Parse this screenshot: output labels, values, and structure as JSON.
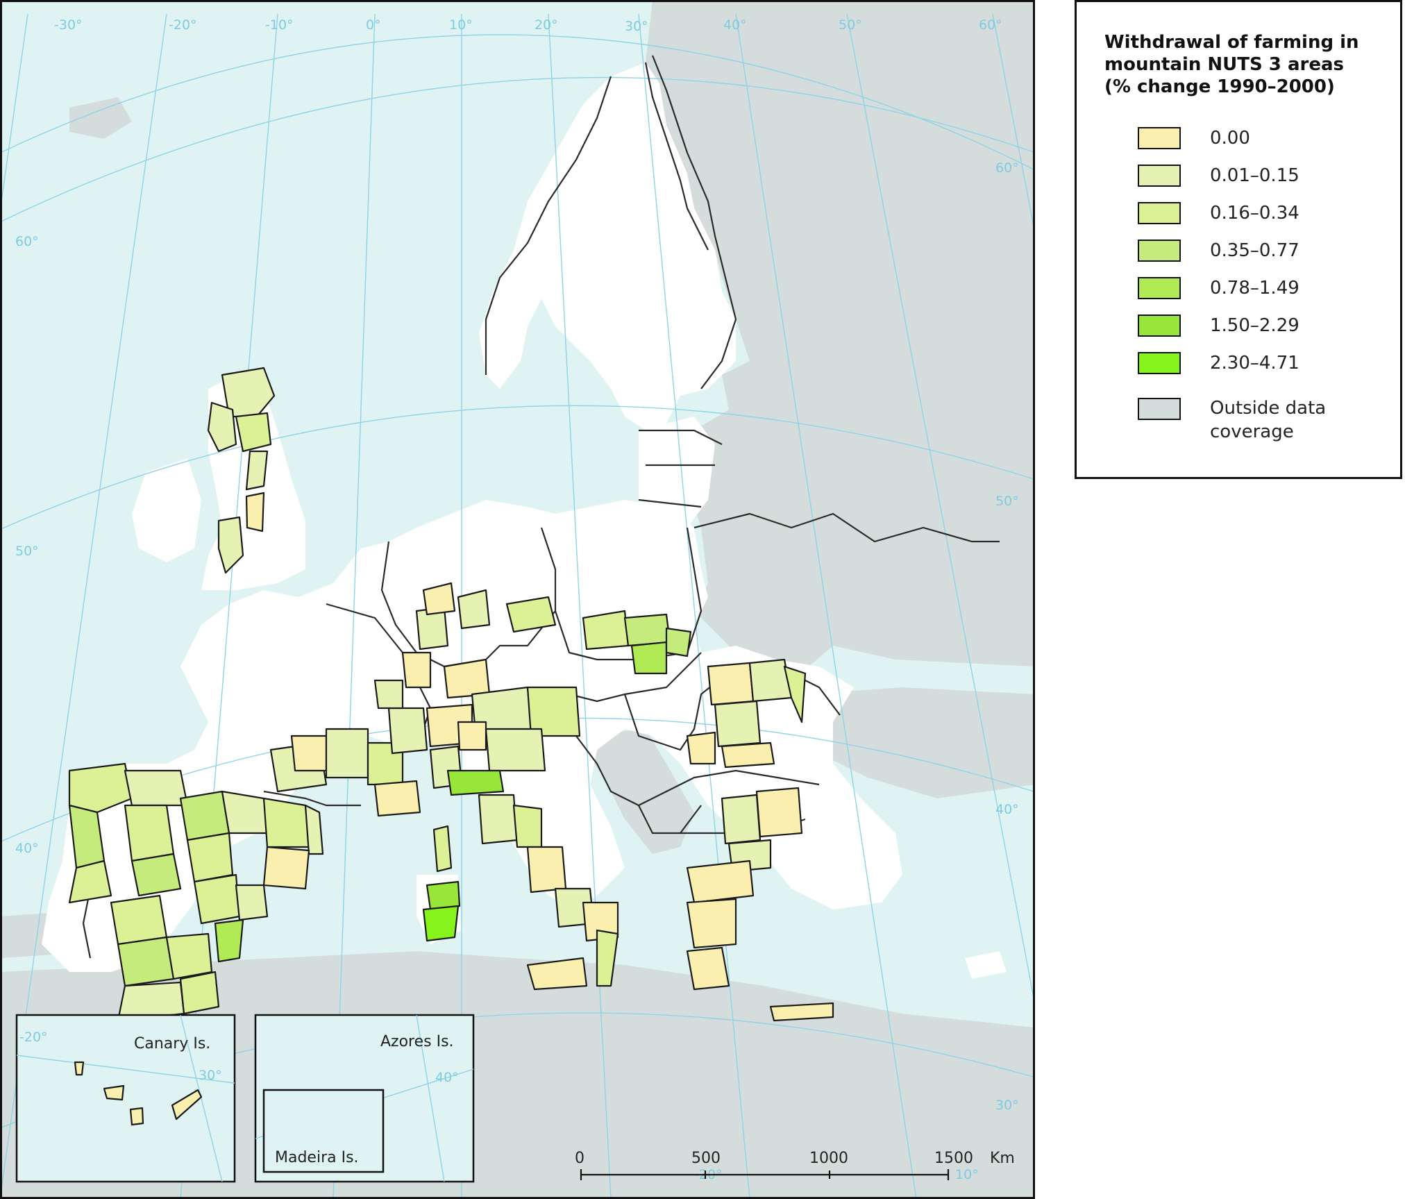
{
  "legend": {
    "title_line1": "Withdrawal of farming in",
    "title_line2": "mountain NUTS 3 areas",
    "title_line3": "(% change 1990–2000)",
    "classes": [
      {
        "label": "0.00",
        "color": "#fbefb0"
      },
      {
        "label": "0.01–0.15",
        "color": "#e6f2b4"
      },
      {
        "label": "0.16–0.34",
        "color": "#dcf096"
      },
      {
        "label": "0.35–0.77",
        "color": "#c6eb7d"
      },
      {
        "label": "0.78–1.49",
        "color": "#b0ea55"
      },
      {
        "label": "1.50–2.29",
        "color": "#98e63a"
      },
      {
        "label": "2.30–4.71",
        "color": "#86f31c"
      }
    ],
    "outside": {
      "label_line1": "Outside data",
      "label_line2": "coverage",
      "color": "#d5dcdc"
    }
  },
  "graticule": {
    "longitudes": [
      "-30°",
      "-20°",
      "-10°",
      "0°",
      "10°",
      "20°",
      "30°",
      "40°",
      "50°",
      "60°"
    ],
    "latitudes_left": [
      "60°",
      "50°",
      "40°"
    ],
    "latitudes_right": [
      "60°",
      "50°",
      "40°",
      "30°"
    ]
  },
  "insets": {
    "canary": {
      "label": "Canary Is.",
      "grid": [
        "-20°",
        "30°"
      ]
    },
    "azores": {
      "label": "Azores Is.",
      "grid": [
        "40°"
      ]
    },
    "madeira": {
      "label": "Madeira Is."
    }
  },
  "scalebar": {
    "ticks": [
      "0",
      "500",
      "1000",
      "1500"
    ],
    "unit": "Km",
    "grid": [
      "-20°",
      "10°"
    ]
  },
  "colors": {
    "sea": "#dff3f3",
    "land_in": "#ffffff",
    "land_out": "#d5dcdc",
    "graticule": "#8fd3e6"
  }
}
